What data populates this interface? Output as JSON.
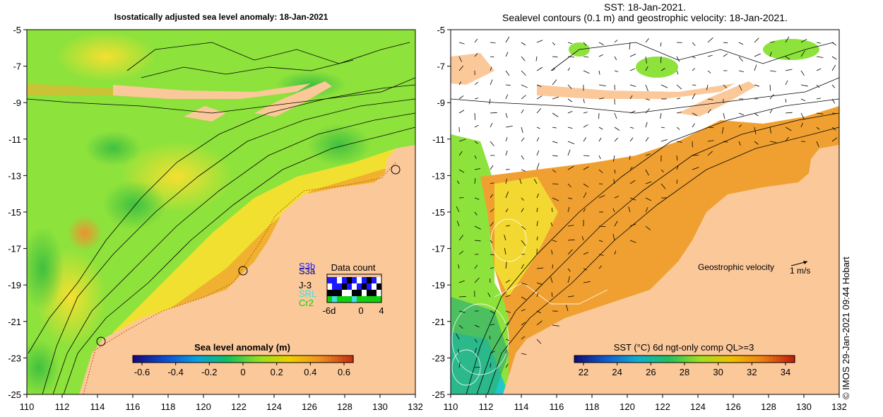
{
  "left_panel": {
    "title": "Isostatically adjusted sea level anomaly: 18-Jan-2021",
    "colorbar": {
      "label": "Sea level anomaly (m)",
      "ticks": [
        "-0.6",
        "-0.4",
        "-0.2",
        "0",
        "0.2",
        "0.4",
        "0.6"
      ],
      "colors": [
        "#1a0a80",
        "#0a4fd6",
        "#0a9fe0",
        "#10c060",
        "#90e020",
        "#f0d000",
        "#f09020",
        "#c83010"
      ]
    },
    "data_count": {
      "title": "Data count",
      "missions": [
        "S3b",
        "S3a",
        "J-3",
        "SRL",
        "Cr2"
      ],
      "mission_colors": [
        "#1a1aff",
        "#00008b",
        "#000000",
        "#40e0e0",
        "#10d010"
      ],
      "axis_ticks": [
        "-6d",
        "0",
        "4"
      ]
    }
  },
  "right_panel": {
    "title_line1": "SST: 18-Jan-2021.",
    "title_line2": "Sealevel contours (0.1 m) and geostrophic velocity: 18-Jan-2021.",
    "velocity_legend": "Geostrophic velocity",
    "velocity_scale": "1 m/s",
    "colorbar": {
      "label": "SST (°C) 6d ngt-only comp QL>=3",
      "ticks": [
        "22",
        "24",
        "26",
        "28",
        "30",
        "32",
        "34"
      ],
      "colors": [
        "#10107a",
        "#1060d0",
        "#10b0d0",
        "#20c060",
        "#a0e020",
        "#f0c000",
        "#f08010",
        "#c02010"
      ]
    }
  },
  "axes": {
    "x_ticks": [
      "110",
      "112",
      "114",
      "116",
      "118",
      "120",
      "122",
      "124",
      "126",
      "128",
      "130",
      "132"
    ],
    "y_ticks": [
      "-5",
      "-7",
      "-9",
      "-11",
      "-13",
      "-15",
      "-17",
      "-19",
      "-21",
      "-23",
      "-25"
    ]
  },
  "colors": {
    "land": "#fbc89a",
    "ocean_green": "#8ee23c",
    "ocean_yellow": "#f2e030",
    "ocean_orange": "#f0a030",
    "contour": "#000000",
    "sst_missing": "#ffffff"
  },
  "credit": "© IMOS 29-Jan-2021 09:44 Hobart"
}
